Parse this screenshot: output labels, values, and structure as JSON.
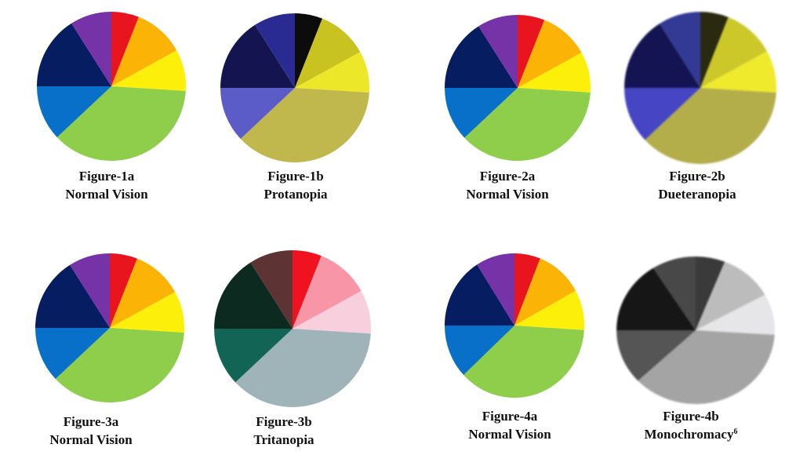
{
  "figures": [
    {
      "id": "fig-1a",
      "title": "Figure-1a",
      "subtitle": "Normal Vision",
      "colors": [
        "#e8141e",
        "#fbb305",
        "#fcf00b",
        "#8ece4a",
        "#0870c8",
        "#071d62",
        "#7633a8"
      ]
    },
    {
      "id": "fig-1b",
      "title": "Figure-1b",
      "subtitle": "Protanopia",
      "colors": [
        "#0c0c0c",
        "#c9c322",
        "#ece728",
        "#c0b84c",
        "#5c5cc8",
        "#141450",
        "#2a2b92"
      ]
    },
    {
      "id": "fig-2a",
      "title": "Figure-2a",
      "subtitle": "Normal Vision",
      "colors": [
        "#e8141e",
        "#fbb305",
        "#fcf00b",
        "#8ece4a",
        "#0870c8",
        "#071d62",
        "#7633a8"
      ]
    },
    {
      "id": "fig-2b",
      "title": "Figure-2b",
      "subtitle": "Dueteranopia",
      "colors": [
        "#2a2a10",
        "#cdc82a",
        "#f0ea2c",
        "#b3ad4a",
        "#4646c4",
        "#141452",
        "#323a96"
      ]
    },
    {
      "id": "fig-3a",
      "title": "Figure-3a",
      "subtitle": "Normal Vision",
      "colors": [
        "#e8141e",
        "#fbb305",
        "#fcf00b",
        "#8ece4a",
        "#0870c8",
        "#071d62",
        "#7633a8"
      ]
    },
    {
      "id": "fig-3b",
      "title": "Figure-3b",
      "subtitle": "Tritanopia",
      "colors": [
        "#f0121e",
        "#f896a8",
        "#f8cfdc",
        "#9fb4b9",
        "#126454",
        "#0c2a20",
        "#5e3334"
      ]
    },
    {
      "id": "fig-4a",
      "title": "Figure-4a",
      "subtitle": "Normal Vision",
      "colors": [
        "#e8141e",
        "#fbb305",
        "#fcf00b",
        "#8ece4a",
        "#0870c8",
        "#071d62",
        "#7633a8"
      ]
    },
    {
      "id": "fig-4b",
      "title": "Figure-4b",
      "subtitle": "Monochromacy",
      "superscript": "6",
      "colors": [
        "#3a3a3a",
        "#bcbcbc",
        "#e6e6e8",
        "#a4a4a4",
        "#555555",
        "#161616",
        "#484848"
      ]
    }
  ],
  "chart_data": [
    {
      "type": "pie",
      "title": "Figure-1a Normal Vision",
      "values": [
        6,
        11,
        9,
        37,
        12,
        16,
        9
      ]
    },
    {
      "type": "pie",
      "title": "Figure-1b Protanopia",
      "values": [
        6,
        11,
        9,
        37,
        12,
        16,
        9
      ]
    },
    {
      "type": "pie",
      "title": "Figure-2a Normal Vision",
      "values": [
        6,
        11,
        9,
        37,
        12,
        16,
        9
      ]
    },
    {
      "type": "pie",
      "title": "Figure-2b Dueteranopia",
      "values": [
        6,
        11,
        9,
        37,
        12,
        16,
        9
      ]
    },
    {
      "type": "pie",
      "title": "Figure-3a Normal Vision",
      "values": [
        6,
        11,
        9,
        37,
        12,
        16,
        9
      ]
    },
    {
      "type": "pie",
      "title": "Figure-3b Tritanopia",
      "values": [
        6,
        11,
        9,
        37,
        12,
        16,
        9
      ]
    },
    {
      "type": "pie",
      "title": "Figure-4a Normal Vision",
      "values": [
        6,
        11,
        9,
        37,
        12,
        16,
        9
      ]
    },
    {
      "type": "pie",
      "title": "Figure-4b Monochromacy",
      "values": [
        6,
        11,
        9,
        37,
        12,
        16,
        9
      ]
    }
  ]
}
